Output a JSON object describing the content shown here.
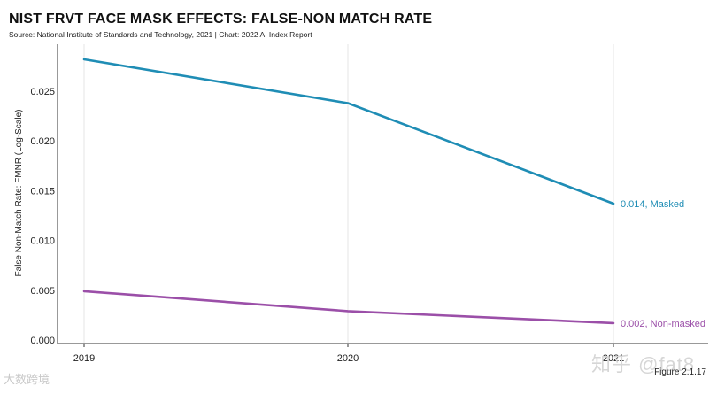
{
  "header": {
    "title": "NIST FRVT FACE MASK EFFECTS: FALSE-NON MATCH RATE",
    "subtitle": "Source: National Institute of Standards and Technology, 2021 | Chart: 2022 AI Index Report"
  },
  "footer": {
    "figure": "Figure 2.1.17",
    "watermark_left": "大数跨境",
    "watermark_right": "知乎 @fat8"
  },
  "colors": {
    "masked": "#1f8db5",
    "non_masked": "#9b4fa8",
    "grid": "#e6e6e6",
    "axis": "#333333"
  },
  "chart_data": {
    "type": "line",
    "title": "NIST FRVT FACE MASK EFFECTS: FALSE-NON MATCH RATE",
    "xlabel": "",
    "ylabel": "False Non-Match Rate: FMNR (Log-Scale)",
    "x": [
      2019,
      2020,
      2021
    ],
    "x_tick_labels": [
      "2019",
      "2020",
      "2021"
    ],
    "y_ticks": [
      0.0,
      0.005,
      0.01,
      0.015,
      0.02,
      0.025
    ],
    "y_tick_labels": [
      "0.000",
      "0.005",
      "0.010",
      "0.015",
      "0.020",
      "0.025"
    ],
    "ylim": [
      0.0,
      0.03
    ],
    "series": [
      {
        "name": "Masked",
        "values": [
          0.0282,
          0.0238,
          0.0137
        ],
        "end_label": "0.014, Masked"
      },
      {
        "name": "Non-masked",
        "values": [
          0.0049,
          0.0029,
          0.0017
        ],
        "end_label": "0.002, Non-masked"
      }
    ]
  }
}
